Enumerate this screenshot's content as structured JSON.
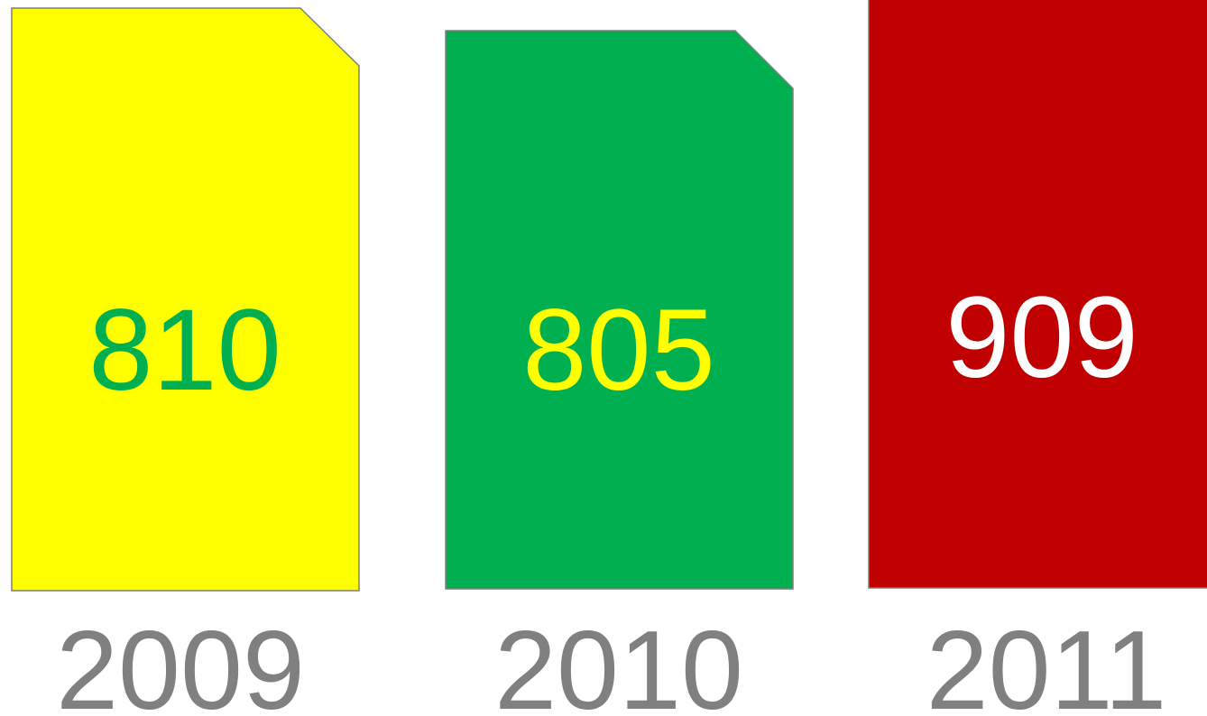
{
  "cards": [
    {
      "value": 810,
      "year": "2009",
      "fill": "#ffff00",
      "text_color": "#00b050"
    },
    {
      "value": 805,
      "year": "2010",
      "fill": "#00b050",
      "text_color": "#ffff00"
    },
    {
      "value": 909,
      "year": "2011",
      "fill": "#c00000",
      "text_color": "#ffffff"
    }
  ]
}
